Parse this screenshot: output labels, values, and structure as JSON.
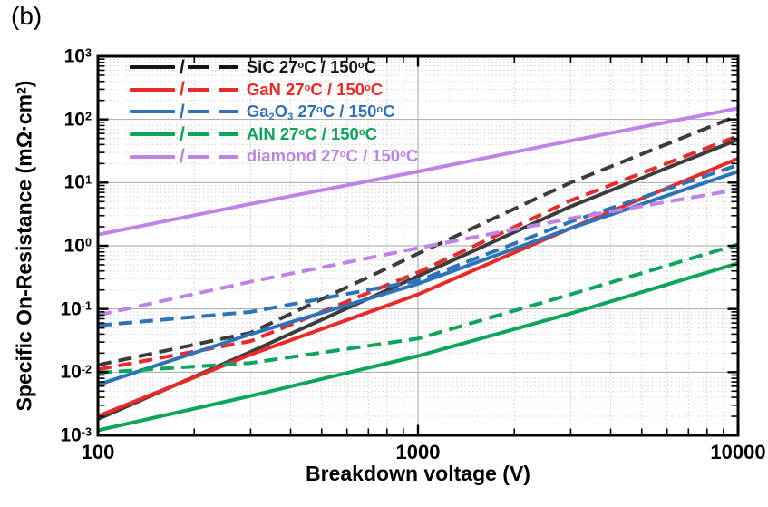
{
  "panel_label": "(b)",
  "chart_data": {
    "type": "line",
    "title": "",
    "xlabel": "Breakdown voltage (V)",
    "ylabel": "Specific On-Resistance (mΩ·cm²)",
    "ylabel_tokens": [
      {
        "t": "Specific On-Resistance (mΩ·cm"
      },
      {
        "sup": "2"
      },
      {
        "t": ")"
      }
    ],
    "x_scale": "log",
    "y_scale": "log",
    "xlim": [
      100,
      10000
    ],
    "ylim": [
      0.001,
      1000
    ],
    "x_tick_values": [
      100,
      1000,
      10000
    ],
    "x_tick_labels": [
      "100",
      "1000",
      "10000"
    ],
    "y_tick_base": "10",
    "y_tick_exponents": [
      "3",
      "2",
      "1",
      "0",
      "-1",
      "-2",
      "-3"
    ],
    "grid": "major solid gray lines at decades, dotted minor log gridlines",
    "legend_position": "upper-left inside plot",
    "legend_separator": "/",
    "series": [
      {
        "id": "sic-27c",
        "label": "SiC 27°C",
        "color": "#3c3c3c",
        "dash": false,
        "points": [
          [
            100,
            0.0018
          ],
          [
            300,
            0.021
          ],
          [
            1000,
            0.33
          ],
          [
            3000,
            4.2
          ],
          [
            10000,
            48
          ]
        ]
      },
      {
        "id": "sic-150c",
        "label": "SiC 150°C",
        "color": "#3c3c3c",
        "dash": true,
        "points": [
          [
            100,
            0.013
          ],
          [
            300,
            0.042
          ],
          [
            1000,
            0.75
          ],
          [
            3000,
            10
          ],
          [
            10000,
            115
          ]
        ]
      },
      {
        "id": "gan-27c",
        "label": "GaN 27°C",
        "color": "#e92a28",
        "dash": false,
        "points": [
          [
            100,
            0.002
          ],
          [
            300,
            0.019
          ],
          [
            1000,
            0.17
          ],
          [
            3000,
            1.9
          ],
          [
            10000,
            24
          ]
        ]
      },
      {
        "id": "gan-150c",
        "label": "GaN 150°C",
        "color": "#e92a28",
        "dash": true,
        "points": [
          [
            100,
            0.011
          ],
          [
            300,
            0.031
          ],
          [
            1000,
            0.38
          ],
          [
            3000,
            5.2
          ],
          [
            10000,
            55
          ]
        ]
      },
      {
        "id": "ga2o3-27c",
        "label": "Ga2O3 27°C",
        "color": "#2e73b8",
        "dash": false,
        "points": [
          [
            100,
            0.0063
          ],
          [
            300,
            0.04
          ],
          [
            1000,
            0.25
          ],
          [
            3000,
            1.9
          ],
          [
            10000,
            15
          ]
        ]
      },
      {
        "id": "ga2o3-150c",
        "label": "Ga2O3 150°C",
        "color": "#2e73b8",
        "dash": true,
        "points": [
          [
            100,
            0.055
          ],
          [
            300,
            0.09
          ],
          [
            1000,
            0.28
          ],
          [
            3000,
            2.4
          ],
          [
            10000,
            19
          ]
        ]
      },
      {
        "id": "aln-27c",
        "label": "AlN 27°C",
        "color": "#0ba55c",
        "dash": false,
        "points": [
          [
            100,
            0.0012
          ],
          [
            300,
            0.0042
          ],
          [
            1000,
            0.018
          ],
          [
            3000,
            0.085
          ],
          [
            10000,
            0.53
          ]
        ]
      },
      {
        "id": "aln-150c",
        "label": "AlN 150°C",
        "color": "#0ba55c",
        "dash": true,
        "points": [
          [
            100,
            0.0098
          ],
          [
            300,
            0.014
          ],
          [
            1000,
            0.034
          ],
          [
            3000,
            0.17
          ],
          [
            10000,
            1.05
          ]
        ]
      },
      {
        "id": "diamond-27c",
        "label": "diamond 27°C",
        "color": "#bd84e6",
        "dash": false,
        "points": [
          [
            100,
            1.5
          ],
          [
            300,
            4.6
          ],
          [
            1000,
            15
          ],
          [
            3000,
            46
          ],
          [
            10000,
            150
          ]
        ]
      },
      {
        "id": "diamond-150c",
        "label": "diamond 150°C",
        "color": "#bd84e6",
        "dash": true,
        "points": [
          [
            100,
            0.08
          ],
          [
            300,
            0.27
          ],
          [
            1000,
            0.92
          ],
          [
            3000,
            2.7
          ],
          [
            10000,
            7.8
          ]
        ]
      }
    ],
    "legend": [
      {
        "id": "sic",
        "color": "#141414",
        "label": "SiC 27°C / 150°C",
        "tokens": [
          {
            "t": "SiC 27"
          },
          {
            "sup": "o"
          },
          {
            "t": "C / 150"
          },
          {
            "sup": "o"
          },
          {
            "t": "C"
          }
        ]
      },
      {
        "id": "gan",
        "color": "#e92a28",
        "label": "GaN 27°C / 150°C",
        "tokens": [
          {
            "t": "GaN 27"
          },
          {
            "sup": "o"
          },
          {
            "t": "C / 150"
          },
          {
            "sup": "o"
          },
          {
            "t": "C"
          }
        ]
      },
      {
        "id": "ga2o3",
        "color": "#2e73b8",
        "label": "Ga2O3 27°C / 150°C",
        "tokens": [
          {
            "t": "Ga"
          },
          {
            "sub": "2"
          },
          {
            "t": "O"
          },
          {
            "sub": "3"
          },
          {
            "t": " 27"
          },
          {
            "sup": "o"
          },
          {
            "t": "C / 150"
          },
          {
            "sup": "o"
          },
          {
            "t": "C"
          }
        ]
      },
      {
        "id": "aln",
        "color": "#0ba55c",
        "label": "AlN 27°C / 150°C",
        "tokens": [
          {
            "t": "AlN 27"
          },
          {
            "sup": "o"
          },
          {
            "t": "C / 150"
          },
          {
            "sup": "o"
          },
          {
            "t": "C"
          }
        ]
      },
      {
        "id": "diamond",
        "color": "#bd84e6",
        "label": "diamond 27°C / 150°C",
        "tokens": [
          {
            "t": "diamond 27"
          },
          {
            "sup": "o"
          },
          {
            "t": "C / 150"
          },
          {
            "sup": "o"
          },
          {
            "t": "C"
          }
        ]
      }
    ],
    "colors": {
      "sic": "#3c3c3c",
      "gan": "#e92a28",
      "ga2o3": "#2e73b8",
      "aln": "#0ba55c",
      "diamond": "#bd84e6",
      "grid_major": "#a6a6a6",
      "grid_minor": "#c9c9c9",
      "frame": "#000000"
    }
  }
}
